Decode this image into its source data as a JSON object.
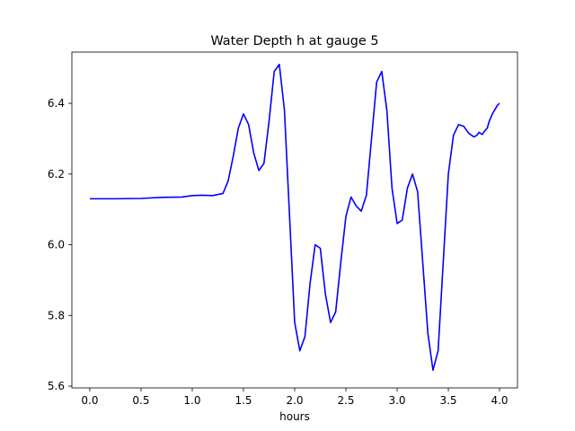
{
  "chart_data": {
    "type": "line",
    "title": "Water Depth h at gauge 5",
    "xlabel": "hours",
    "ylabel": "",
    "xlim": [
      -0.175,
      4.175
    ],
    "ylim": [
      5.595,
      6.545
    ],
    "xticks": [
      0.0,
      0.5,
      1.0,
      1.5,
      2.0,
      2.5,
      3.0,
      3.5,
      4.0
    ],
    "xtick_labels": [
      "0.0",
      "0.5",
      "1.0",
      "1.5",
      "2.0",
      "2.5",
      "3.0",
      "3.5",
      "4.0"
    ],
    "yticks": [
      5.6,
      5.8,
      6.0,
      6.2,
      6.4
    ],
    "ytick_labels": [
      "5.6",
      "5.8",
      "6.0",
      "6.2",
      "6.4"
    ],
    "grid": false,
    "series": [
      {
        "color": "#0000ff",
        "x": [
          0.0,
          0.25,
          0.5,
          0.7,
          0.9,
          1.0,
          1.1,
          1.2,
          1.3,
          1.35,
          1.4,
          1.45,
          1.5,
          1.55,
          1.6,
          1.65,
          1.7,
          1.75,
          1.8,
          1.85,
          1.9,
          1.95,
          2.0,
          2.05,
          2.1,
          2.15,
          2.2,
          2.25,
          2.3,
          2.35,
          2.4,
          2.45,
          2.5,
          2.55,
          2.6,
          2.65,
          2.7,
          2.75,
          2.8,
          2.85,
          2.9,
          2.95,
          3.0,
          3.05,
          3.1,
          3.15,
          3.2,
          3.25,
          3.3,
          3.35,
          3.4,
          3.45,
          3.5,
          3.55,
          3.6,
          3.65,
          3.7,
          3.75,
          3.78,
          3.8,
          3.83,
          3.85,
          3.88,
          3.9,
          3.93,
          3.95,
          3.98,
          4.0
        ],
        "y": [
          6.13,
          6.13,
          6.131,
          6.134,
          6.135,
          6.139,
          6.14,
          6.139,
          6.145,
          6.18,
          6.25,
          6.33,
          6.37,
          6.34,
          6.26,
          6.21,
          6.23,
          6.35,
          6.49,
          6.51,
          6.38,
          6.08,
          5.78,
          5.7,
          5.74,
          5.89,
          6.0,
          5.99,
          5.86,
          5.78,
          5.81,
          5.95,
          6.08,
          6.135,
          6.11,
          6.095,
          6.14,
          6.3,
          6.46,
          6.49,
          6.38,
          6.16,
          6.06,
          6.07,
          6.16,
          6.2,
          6.15,
          5.95,
          5.75,
          5.645,
          5.7,
          5.95,
          6.2,
          6.31,
          6.34,
          6.335,
          6.315,
          6.305,
          6.31,
          6.318,
          6.312,
          6.32,
          6.33,
          6.35,
          6.37,
          6.38,
          6.395,
          6.4
        ]
      }
    ]
  }
}
